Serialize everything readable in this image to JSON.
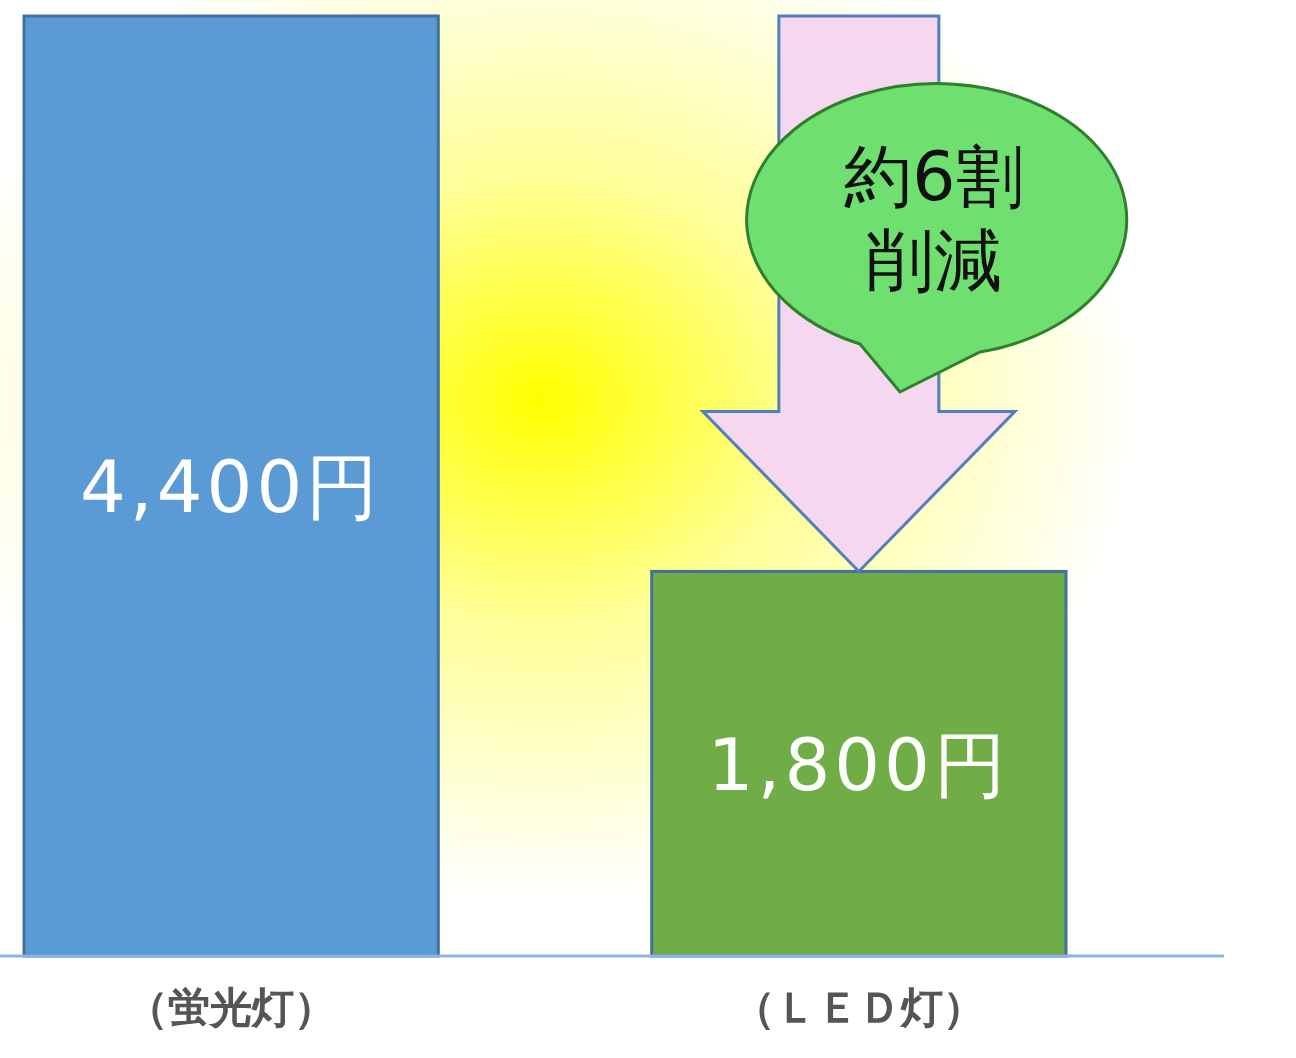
{
  "chart_data": {
    "type": "bar",
    "categories": [
      "（蛍光灯）",
      "（ＬＥＤ灯）"
    ],
    "values": [
      4400,
      1800
    ],
    "colors": [
      "#5b9bd5",
      "#70ad47"
    ],
    "value_labels": [
      "4,400円",
      "1,800円"
    ],
    "annotations": [
      "約6割削減"
    ]
  }
}
